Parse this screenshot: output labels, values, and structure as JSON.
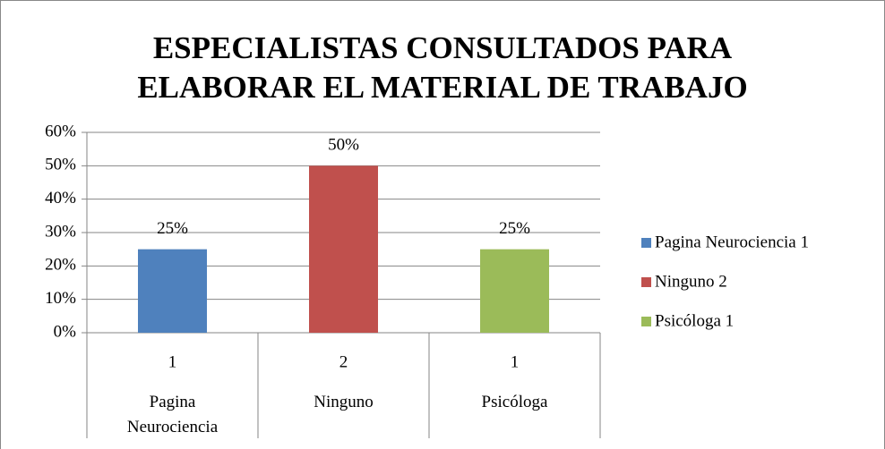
{
  "chart_data": {
    "type": "bar",
    "title": "ESPECIALISTAS CONSULTADOS PARA ELABORAR EL MATERIAL DE TRABAJO",
    "categories": [
      "1",
      "2",
      "1"
    ],
    "category_groups": [
      "Pagina Neurociencia",
      "Ninguno",
      "Psicóloga"
    ],
    "values": [
      25,
      50,
      25
    ],
    "value_labels": [
      "25%",
      "50%",
      "25%"
    ],
    "colors": [
      "#4f81bd",
      "#c0504d",
      "#9bbb59"
    ],
    "legend": [
      "Pagina Neurociencia 1",
      "Ninguno 2",
      "Psicóloga 1"
    ],
    "legend_position": "right",
    "ylim": [
      0,
      60
    ],
    "yticks": [
      {
        "value": 0,
        "label": "0%"
      },
      {
        "value": 10,
        "label": "10%"
      },
      {
        "value": 20,
        "label": "20%"
      },
      {
        "value": 30,
        "label": "30%"
      },
      {
        "value": 40,
        "label": "40%"
      },
      {
        "value": 50,
        "label": "50%"
      },
      {
        "value": 60,
        "label": "60%"
      }
    ],
    "grid": true
  }
}
